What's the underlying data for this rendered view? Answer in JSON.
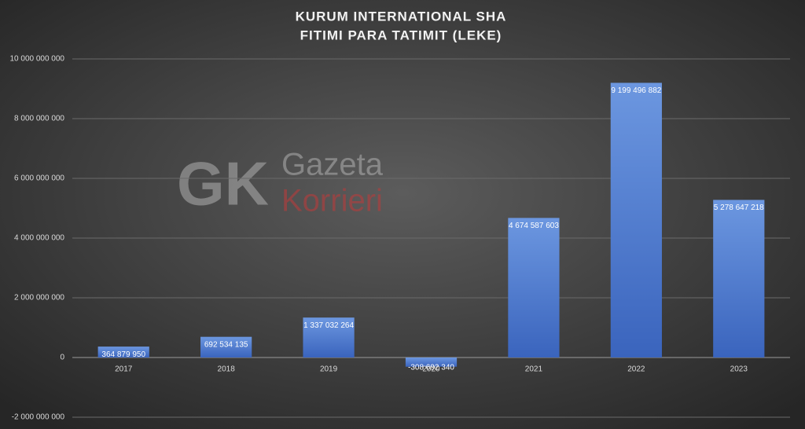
{
  "chart_data": {
    "type": "bar",
    "title": [
      "KURUM INTERNATIONAL SHA",
      "FITIMI PARA TATIMIT (LEKE)"
    ],
    "watermark": [
      "GK",
      "Gazeta",
      "Korrieri"
    ],
    "categories": [
      "2017",
      "2018",
      "2019",
      "2020",
      "2021",
      "2022",
      "2023"
    ],
    "values": [
      364879950,
      692534135,
      1337032264,
      -308692340,
      4674587603,
      9199496882,
      5278647218
    ],
    "value_labels": [
      "364 879 950",
      "692 534 135",
      "1 337 032 264",
      "-308 692 340",
      "4 674 587 603",
      "9 199 496 882",
      "5 278 647 218"
    ],
    "color": "#4a78d0",
    "ylim": [
      -2000000000,
      10000000000
    ],
    "yticks": [
      {
        "value": -2000000000,
        "label": "-2 000 000 000"
      },
      {
        "value": 0,
        "label": "0"
      },
      {
        "value": 2000000000,
        "label": "2 000 000 000"
      },
      {
        "value": 4000000000,
        "label": "4 000 000 000"
      },
      {
        "value": 6000000000,
        "label": "6 000 000 000"
      },
      {
        "value": 8000000000,
        "label": "8 000 000 000"
      },
      {
        "value": 10000000000,
        "label": "10 000 000 000"
      }
    ],
    "grid": true
  }
}
